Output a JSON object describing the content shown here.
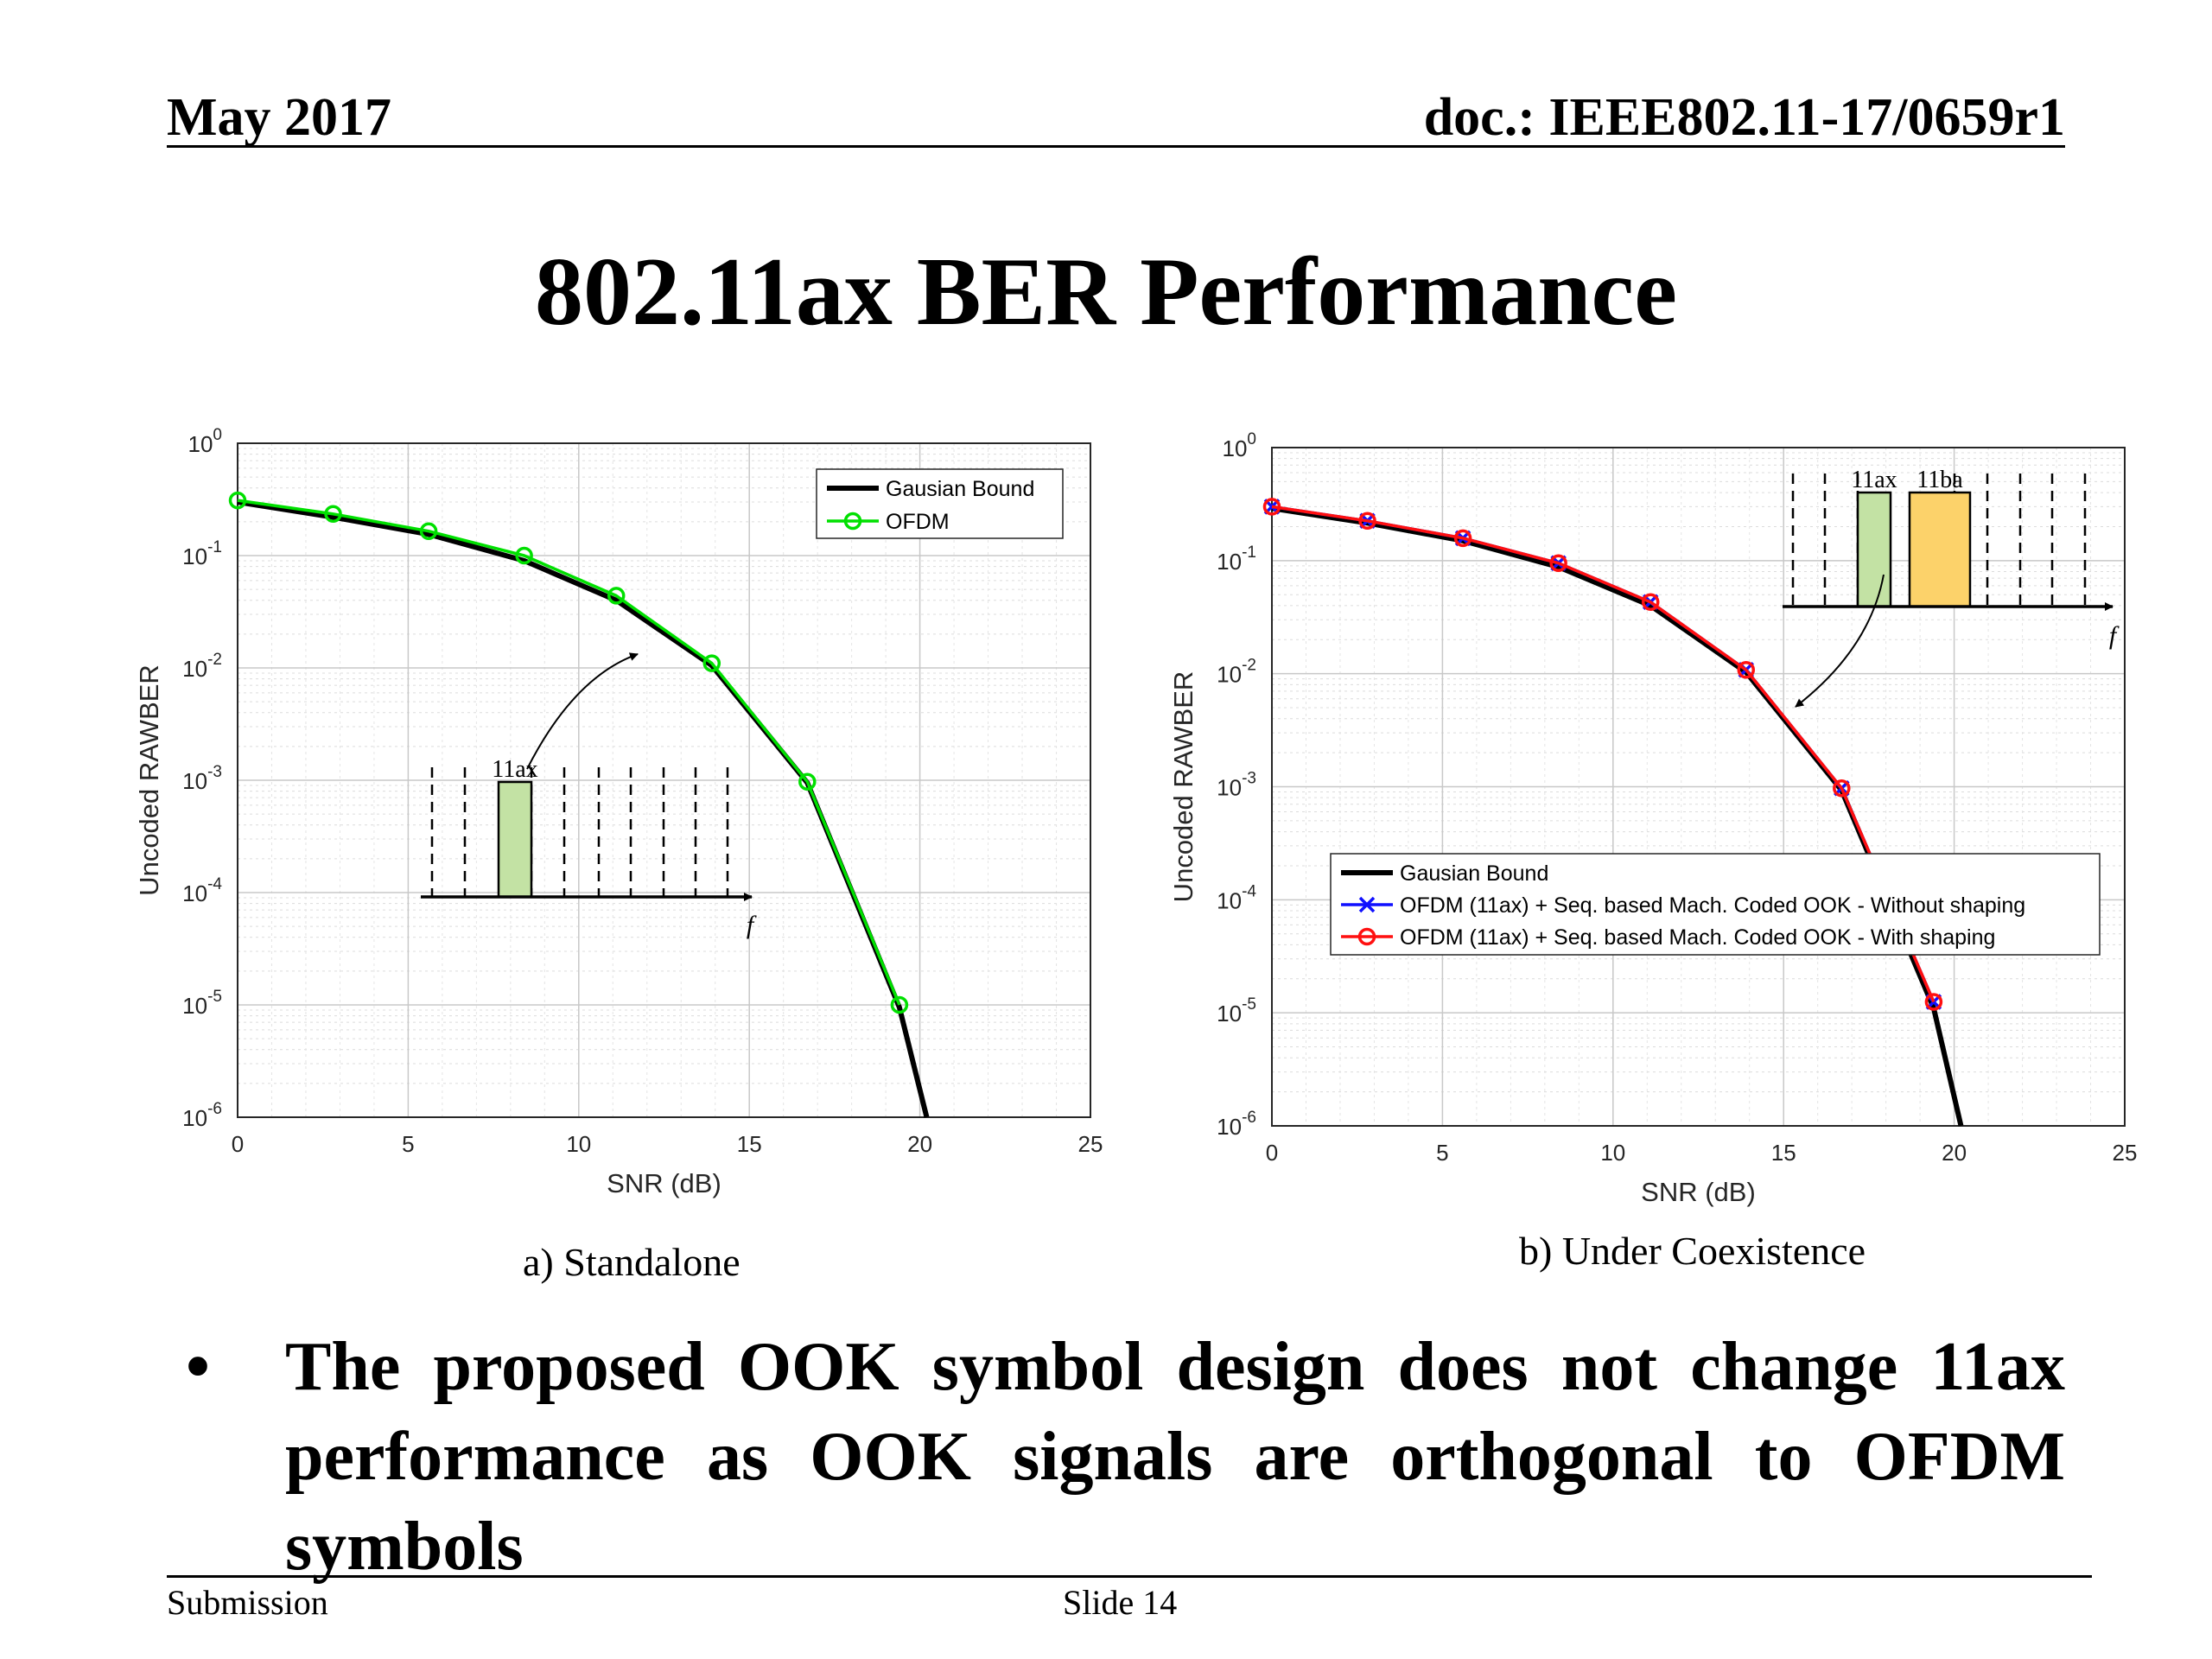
{
  "header": {
    "date": "May 2017",
    "doc": "doc.: IEEE802.11-17/0659r1"
  },
  "title": "802.11ax BER Performance",
  "captions": {
    "a": "a) Standalone",
    "b": "b) Under Coexistence"
  },
  "bullet": "The proposed OOK symbol design does not change 11ax performance as OOK signals are orthogonal to OFDM symbols",
  "footer": {
    "left": "Submission",
    "center": "Slide 14"
  },
  "colors": {
    "black": "#000000",
    "green": "#00e000",
    "blue": "#1010ff",
    "red": "#ff1010",
    "inset_green": "#c3e2a4",
    "inset_yellow": "#fcd26a"
  },
  "chart_data": [
    {
      "type": "line",
      "subtitle": "a) Standalone",
      "xlabel": "SNR (dB)",
      "ylabel": "Uncoded RAWBER",
      "xlim": [
        0,
        25
      ],
      "ylim": [
        1e-06,
        1
      ],
      "yscale": "log",
      "xticks": [
        "0",
        "5",
        "10",
        "15",
        "20",
        "25"
      ],
      "grid": true,
      "legend_position": "top-right",
      "series": [
        {
          "name": "Gausian Bound",
          "style": "line",
          "color": "#000000",
          "x": [
            0,
            2.8,
            5.6,
            8.4,
            11.1,
            13.9,
            16.7,
            19.4,
            20.2
          ],
          "y": [
            0.3,
            0.22,
            0.155,
            0.09,
            0.04,
            0.0105,
            0.00095,
            9.5e-06,
            1e-06
          ]
        },
        {
          "name": "OFDM",
          "style": "line-circle",
          "color": "#00e000",
          "x": [
            0,
            2.8,
            5.6,
            8.4,
            11.1,
            13.9,
            16.7,
            19.4
          ],
          "y": [
            0.31,
            0.235,
            0.165,
            0.1,
            0.044,
            0.011,
            0.00097,
            1e-05
          ]
        }
      ],
      "inset": {
        "labels": [
          "11ax"
        ],
        "axis_label": "f"
      }
    },
    {
      "type": "line",
      "subtitle": "b) Under Coexistence",
      "xlabel": "SNR (dB)",
      "ylabel": "Uncoded RAWBER",
      "xlim": [
        0,
        25
      ],
      "ylim": [
        1e-06,
        1
      ],
      "yscale": "log",
      "xticks": [
        "0",
        "5",
        "10",
        "15",
        "20",
        "25"
      ],
      "grid": true,
      "legend_position": "bottom-right",
      "series": [
        {
          "name": "Gausian Bound",
          "style": "line",
          "color": "#000000",
          "x": [
            0,
            2.8,
            5.6,
            8.4,
            11.1,
            13.9,
            16.7,
            19.4,
            20.2
          ],
          "y": [
            0.29,
            0.215,
            0.15,
            0.088,
            0.04,
            0.0103,
            0.00093,
            1.1e-05,
            1e-06
          ]
        },
        {
          "name": "OFDM (11ax) + Seq. based Mach. Coded OOK - Without shaping",
          "style": "line-x",
          "color": "#1010ff",
          "x": [
            0,
            2.8,
            5.6,
            8.4,
            11.1,
            13.9,
            16.7,
            19.4
          ],
          "y": [
            0.3,
            0.225,
            0.158,
            0.095,
            0.043,
            0.0108,
            0.00097,
            1.25e-05
          ]
        },
        {
          "name": "OFDM (11ax) + Seq. based Mach. Coded OOK - With shaping",
          "style": "line-circle",
          "color": "#ff1010",
          "x": [
            0,
            2.8,
            5.6,
            8.4,
            11.1,
            13.9,
            16.7,
            19.4
          ],
          "y": [
            0.3,
            0.225,
            0.158,
            0.095,
            0.043,
            0.0108,
            0.00097,
            1.25e-05
          ]
        }
      ],
      "inset": {
        "labels": [
          "11ax",
          "11ba"
        ],
        "axis_label": "f"
      }
    }
  ]
}
